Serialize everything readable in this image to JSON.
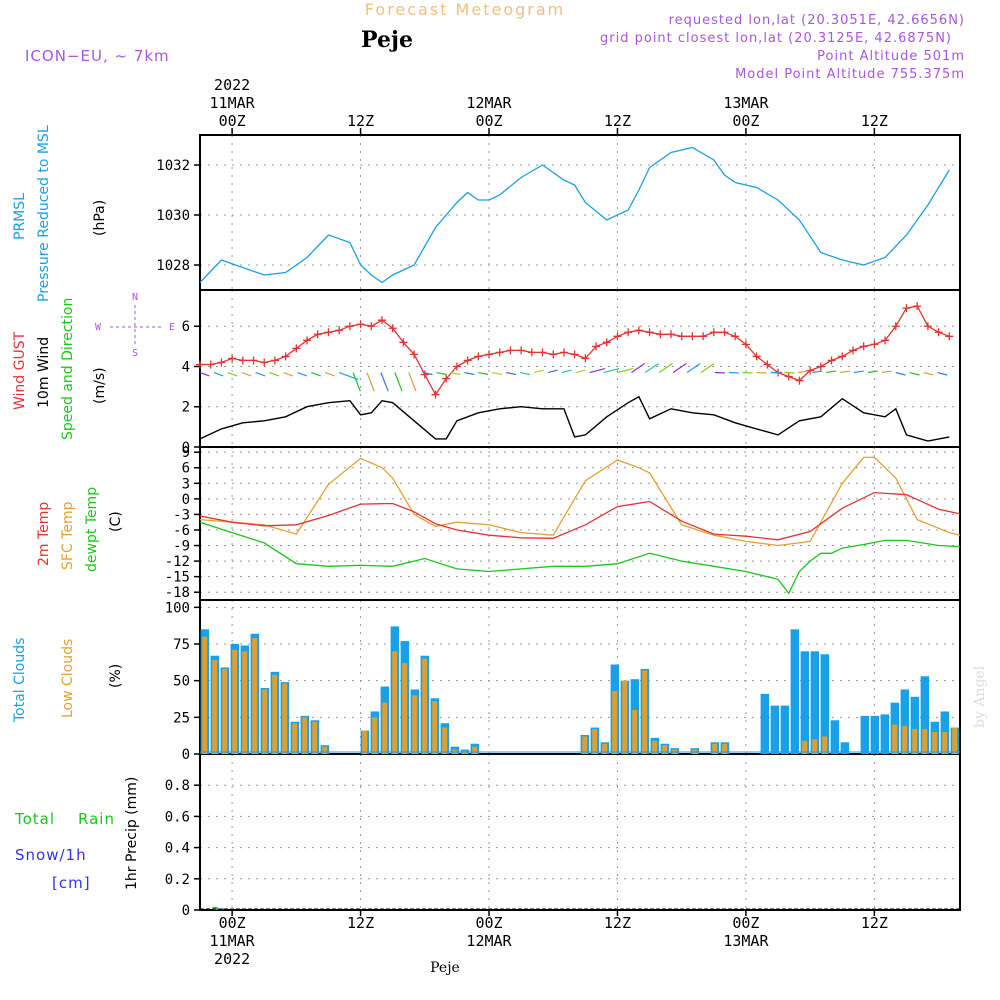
{
  "header": {
    "title": "Forecast Meteogram",
    "station": "Peje",
    "model": "ICON−EU,  ~ 7km",
    "requested": "requested lon,lat (20.3051E, 42.6656N)",
    "gridpoint": "grid point closest lon,lat (20.3125E, 42.6875N)",
    "point_alt": "Point Altitude 501m",
    "model_alt": "Model Point Altitude 755.375m",
    "credit": "by Angel",
    "footer_station": "Peje"
  },
  "colors": {
    "pressure": "#19a0e6",
    "gust": "#e63232",
    "wind": "#000000",
    "temp2m": "#e63232",
    "sfc": "#e6a032",
    "dewpt": "#19c819",
    "total_cloud": "#19a0e6",
    "low_cloud": "#dca032",
    "rain": "#19c819",
    "snow": "#3232e6",
    "purple": "#aa55dd",
    "title_faint": "#f0c080"
  },
  "time_axis": {
    "top_labels": [
      {
        "t": 3,
        "l1": "2022",
        "l2": "11MAR",
        "l3": "00Z"
      },
      {
        "t": 15,
        "l3": "12Z"
      },
      {
        "t": 27,
        "l2": "12MAR",
        "l3": "00Z"
      },
      {
        "t": 39,
        "l3": "12Z"
      },
      {
        "t": 51,
        "l2": "13MAR",
        "l3": "00Z"
      },
      {
        "t": 63,
        "l3": "12Z"
      }
    ],
    "bottom_labels": [
      {
        "t": 3,
        "l1": "00Z",
        "l2": "11MAR",
        "l3": "2022"
      },
      {
        "t": 15,
        "l1": "12Z"
      },
      {
        "t": 27,
        "l1": "00Z",
        "l2": "12MAR"
      },
      {
        "t": 39,
        "l1": "12Z"
      },
      {
        "t": 51,
        "l1": "00Z",
        "l2": "13MAR"
      },
      {
        "t": 63,
        "l1": "12Z"
      }
    ]
  },
  "panel_labels": {
    "pressure": {
      "name1": "PRMSL",
      "name2": "Pressure Reduced to MSL",
      "unit": "(hPa)"
    },
    "wind": {
      "gust": "Wind GUST",
      "wind": "10m Wind",
      "dir": "Speed and Direction",
      "unit": "(m/s)",
      "compass_n": "N",
      "compass_s": "S",
      "compass_w": "W",
      "compass_e": "E"
    },
    "temp": {
      "t2m": "2m Temp",
      "sfc": "SFC Temp",
      "dew": "dewpt Temp",
      "unit": "(C)"
    },
    "cloud": {
      "total": "Total Clouds",
      "low": "Low Clouds",
      "unit": "(%)"
    },
    "precip": {
      "rain1": "Total",
      "rain2": "Rain",
      "snow1": "Snow/1h",
      "snow2": "[cm]",
      "unit": "1hr Precip (mm)"
    }
  },
  "chart_data": [
    {
      "type": "line",
      "name": "PRMSL",
      "ylabel": "(hPa)",
      "ylim": [
        1027,
        1033.2
      ],
      "yticks": [
        1028,
        1030,
        1032
      ],
      "x_unit": "hours since 10MAR 21Z",
      "x": [
        0,
        2,
        4,
        6,
        8,
        10,
        12,
        14,
        15,
        16,
        17,
        18,
        20,
        22,
        24,
        25,
        26,
        27,
        28,
        30,
        32,
        34,
        35,
        36,
        38,
        40,
        41,
        42,
        44,
        46,
        48,
        49,
        50,
        52,
        54,
        56,
        58,
        60,
        62,
        64,
        66,
        68,
        70
      ],
      "values": [
        1027.3,
        1028.2,
        1027.9,
        1027.6,
        1027.7,
        1028.3,
        1029.2,
        1028.9,
        1028.0,
        1027.6,
        1027.3,
        1027.6,
        1028.0,
        1029.5,
        1030.5,
        1030.9,
        1030.6,
        1030.6,
        1030.8,
        1031.5,
        1032.0,
        1031.4,
        1031.2,
        1030.5,
        1029.8,
        1030.2,
        1031.0,
        1031.9,
        1032.5,
        1032.7,
        1032.2,
        1031.6,
        1031.3,
        1031.1,
        1030.6,
        1029.8,
        1028.5,
        1028.2,
        1028.0,
        1028.3,
        1029.2,
        1030.4,
        1031.8
      ]
    },
    {
      "type": "line",
      "name": "Wind GUST / 10m Wind",
      "ylabel": "(m/s)",
      "ylim": [
        0,
        7.8
      ],
      "yticks": [
        0,
        2,
        4,
        6
      ],
      "x_unit": "hours since 10MAR 21Z",
      "series": [
        {
          "name": "Wind GUST",
          "x": [
            0,
            1,
            2,
            3,
            4,
            5,
            6,
            7,
            8,
            9,
            10,
            11,
            12,
            13,
            14,
            15,
            16,
            17,
            18,
            19,
            20,
            21,
            22,
            23,
            24,
            25,
            26,
            27,
            28,
            29,
            30,
            31,
            32,
            33,
            34,
            35,
            36,
            37,
            38,
            39,
            40,
            41,
            42,
            43,
            44,
            45,
            46,
            47,
            48,
            49,
            50,
            51,
            52,
            53,
            54,
            55,
            56,
            57,
            58,
            59,
            60,
            61,
            62,
            63,
            64,
            65,
            66,
            67,
            68,
            69,
            70
          ],
          "values": [
            4.1,
            4.1,
            4.2,
            4.4,
            4.3,
            4.3,
            4.2,
            4.3,
            4.5,
            4.9,
            5.3,
            5.6,
            5.7,
            5.8,
            6.0,
            6.1,
            6.0,
            6.3,
            5.9,
            5.2,
            4.6,
            3.6,
            2.6,
            3.4,
            4.0,
            4.3,
            4.5,
            4.6,
            4.7,
            4.8,
            4.8,
            4.7,
            4.7,
            4.6,
            4.7,
            4.6,
            4.4,
            5.0,
            5.2,
            5.5,
            5.7,
            5.8,
            5.7,
            5.6,
            5.6,
            5.5,
            5.5,
            5.5,
            5.7,
            5.7,
            5.5,
            5.1,
            4.5,
            4.1,
            3.7,
            3.5,
            3.3,
            3.8,
            4.0,
            4.3,
            4.5,
            4.8,
            5.0,
            5.1,
            5.3,
            6.0,
            6.9,
            7.0,
            6.0,
            5.7,
            5.5
          ]
        },
        {
          "name": "10m Wind",
          "x": [
            0,
            2,
            4,
            6,
            8,
            10,
            12,
            14,
            15,
            16,
            17,
            18,
            20,
            22,
            23,
            24,
            26,
            28,
            30,
            32,
            34,
            35,
            36,
            38,
            40,
            41,
            42,
            44,
            46,
            48,
            50,
            52,
            54,
            56,
            58,
            60,
            62,
            64,
            65,
            66,
            68,
            70
          ],
          "values": [
            0.4,
            0.9,
            1.2,
            1.3,
            1.5,
            2.0,
            2.2,
            2.3,
            1.6,
            1.7,
            2.3,
            2.2,
            1.3,
            0.4,
            0.4,
            1.3,
            1.7,
            1.9,
            2.0,
            1.9,
            1.9,
            0.5,
            0.6,
            1.5,
            2.2,
            2.5,
            1.4,
            1.9,
            1.7,
            1.6,
            1.2,
            0.9,
            0.6,
            1.3,
            1.5,
            2.4,
            1.7,
            1.5,
            1.9,
            0.6,
            0.3,
            0.5
          ]
        }
      ]
    },
    {
      "type": "line",
      "name": "Temperatures",
      "ylabel": "(C)",
      "ylim": [
        -19.5,
        10
      ],
      "yticks": [
        -18,
        -15,
        -12,
        -9,
        -6,
        -3,
        0,
        3,
        6,
        9
      ],
      "x_unit": "hours since 10MAR 21Z",
      "series": [
        {
          "name": "2m Temp",
          "x": [
            0,
            3,
            6,
            9,
            12,
            15,
            18,
            20,
            22,
            24,
            27,
            30,
            33,
            36,
            39,
            42,
            45,
            48,
            51,
            54,
            57,
            60,
            63,
            66,
            69,
            71
          ],
          "values": [
            -3.3,
            -4.5,
            -5.2,
            -5.0,
            -3.2,
            -1.0,
            -0.9,
            -2.5,
            -4.8,
            -6.0,
            -7.0,
            -7.5,
            -7.6,
            -5.0,
            -1.5,
            -0.5,
            -4.3,
            -6.8,
            -7.2,
            -7.9,
            -6.3,
            -1.8,
            1.2,
            0.8,
            -2.0,
            -2.9
          ]
        },
        {
          "name": "SFC Temp",
          "x": [
            0,
            3,
            6,
            9,
            12,
            15,
            17,
            18,
            20,
            22,
            24,
            27,
            30,
            33,
            36,
            39,
            41,
            42,
            45,
            48,
            51,
            54,
            57,
            60,
            62,
            63,
            65,
            67,
            70,
            71
          ],
          "values": [
            -4.0,
            -4.5,
            -5.0,
            -6.8,
            2.8,
            7.8,
            6.0,
            4.0,
            -3.0,
            -5.3,
            -4.5,
            -5.0,
            -6.5,
            -7.0,
            3.5,
            7.5,
            6.0,
            5.0,
            -5.0,
            -7.0,
            -8.2,
            -9.0,
            -8.2,
            3.0,
            8.0,
            8.0,
            4.0,
            -4.0,
            -6.5,
            -7.0
          ]
        },
        {
          "name": "dewpt Temp",
          "x": [
            0,
            3,
            6,
            9,
            12,
            15,
            18,
            21,
            24,
            27,
            30,
            33,
            36,
            39,
            42,
            45,
            48,
            51,
            54,
            55,
            56,
            57,
            58,
            59,
            60,
            62,
            64,
            66,
            69,
            71
          ],
          "values": [
            -4.5,
            -6.5,
            -8.5,
            -12.5,
            -13.0,
            -12.8,
            -13.0,
            -11.5,
            -13.5,
            -14.0,
            -13.5,
            -13.0,
            -13.0,
            -12.5,
            -10.5,
            -12.0,
            -13.0,
            -14.0,
            -15.5,
            -18.2,
            -14.0,
            -12.0,
            -10.5,
            -10.5,
            -9.5,
            -8.8,
            -8.0,
            -8.0,
            -9.0,
            -9.2
          ]
        }
      ]
    },
    {
      "type": "bar",
      "name": "Clouds",
      "ylabel": "(%)",
      "ylim": [
        0,
        105
      ],
      "yticks": [
        0,
        25,
        50,
        75,
        100
      ],
      "x_unit": "hours since 10MAR 21Z",
      "series": [
        {
          "name": "Total Clouds",
          "values": [
            85,
            67,
            59,
            75,
            74,
            82,
            45,
            56,
            49,
            22,
            26,
            23,
            6,
            0,
            0,
            0,
            16,
            29,
            46,
            87,
            77,
            44,
            67,
            38,
            21,
            5,
            3,
            7,
            0,
            0,
            0,
            0,
            0,
            0,
            0,
            0,
            0,
            0,
            13,
            18,
            8,
            61,
            50,
            51,
            58,
            11,
            7,
            4,
            0,
            4,
            0,
            8,
            8,
            0,
            0,
            0,
            41,
            33,
            33,
            85,
            70,
            70,
            68,
            23,
            8,
            0,
            26,
            26,
            27,
            35,
            44,
            39,
            53,
            22,
            29,
            18
          ]
        },
        {
          "name": "Low Clouds",
          "values": [
            80,
            64,
            58,
            71,
            70,
            79,
            44,
            54,
            48,
            21,
            25,
            22,
            5,
            0,
            0,
            0,
            16,
            25,
            35,
            70,
            62,
            40,
            65,
            36,
            18,
            3,
            2,
            5,
            0,
            0,
            0,
            0,
            0,
            0,
            0,
            0,
            0,
            0,
            12,
            17,
            7,
            43,
            50,
            30,
            57,
            9,
            6,
            3,
            0,
            3,
            0,
            7,
            7,
            0,
            0,
            0,
            0,
            0,
            0,
            0,
            9,
            10,
            12,
            0,
            0,
            0,
            0,
            0,
            0,
            20,
            19,
            17,
            17,
            15,
            15,
            18
          ]
        }
      ]
    },
    {
      "type": "bar",
      "name": "1hr Precip",
      "ylabel": "1hr Precip (mm)",
      "ylim": [
        0,
        1.0
      ],
      "yticks": [
        0,
        0.2,
        0.4,
        0.6,
        0.8
      ],
      "series": [
        {
          "name": "Total Rain",
          "x": [
            1
          ],
          "values": [
            0.02
          ]
        },
        {
          "name": "Snow/1h",
          "x": [
            1.5
          ],
          "values": [
            0.01
          ]
        }
      ]
    }
  ]
}
